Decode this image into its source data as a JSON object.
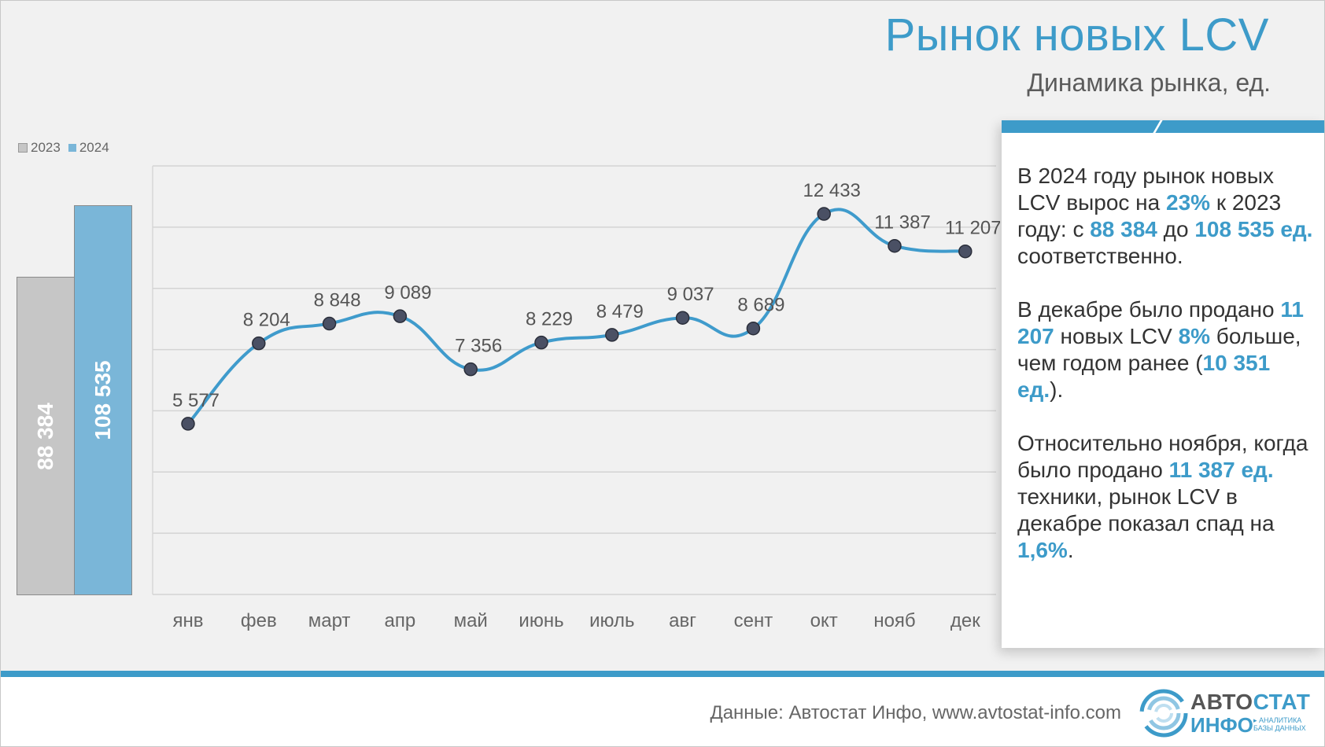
{
  "header": {
    "title": "Рынок новых LCV",
    "subtitle": "Динамика рынка, ед."
  },
  "colors": {
    "accent": "#3d9bc9",
    "line": "#3f9bcc",
    "bar_2023": "#c6c6c6",
    "bar_2024": "#7ab6d8",
    "marker": "#4a5064"
  },
  "chart_data": [
    {
      "type": "bar",
      "categories": [
        "2023",
        "2024"
      ],
      "values": [
        88384,
        108535
      ],
      "value_labels": [
        "88 384",
        "108 535"
      ],
      "legend": [
        "2023",
        "2024"
      ],
      "legend_position": "top-left"
    },
    {
      "type": "line",
      "categories": [
        "янв",
        "фев",
        "март",
        "апр",
        "май",
        "июнь",
        "июль",
        "авг",
        "сент",
        "окт",
        "нояб",
        "дек"
      ],
      "values": [
        5577,
        8204,
        8848,
        9089,
        7356,
        8229,
        8479,
        9037,
        8689,
        12433,
        11387,
        11207
      ],
      "value_labels": [
        "5 577",
        "8 204",
        "8 848",
        "9 089",
        "7 356",
        "8 229",
        "8 479",
        "9 037",
        "8 689",
        "12 433",
        "11 387",
        "11 207"
      ],
      "ylim": [
        0,
        14000
      ],
      "grid": true,
      "smooth": true
    }
  ],
  "info": {
    "p1": {
      "t1": "В 2024 году рынок новых LCV вырос на ",
      "v1": "23%",
      "t2": " к 2023 году: с ",
      "v2": "88 384",
      "t3": " до ",
      "v3": "108 535 ед.",
      "t4": " соответственно."
    },
    "p2": {
      "t1": "В декабре было продано ",
      "v1": "11 207",
      "t2": " новых LCV ",
      "v2": "8%",
      "t3": " больше, чем годом ранее (",
      "v3": "10 351 ед.",
      "t4": ")."
    },
    "p3": {
      "t1": "Относительно ноября, когда было продано ",
      "v1": "11 387 ед.",
      "t2": " техники,  рынок LCV в декабре показал спад на ",
      "v2": "1,6%",
      "t3": "."
    }
  },
  "footer": {
    "source": "Данные: Автостат Инфо, www.avtostat-info.com",
    "logo_line1a": "АВТО",
    "logo_line1b": "СТАТ",
    "logo_line2": "ИНФО",
    "logo_sub1": "▸ АНАЛИТИКА",
    "logo_sub2": "БАЗЫ ДАННЫХ"
  }
}
